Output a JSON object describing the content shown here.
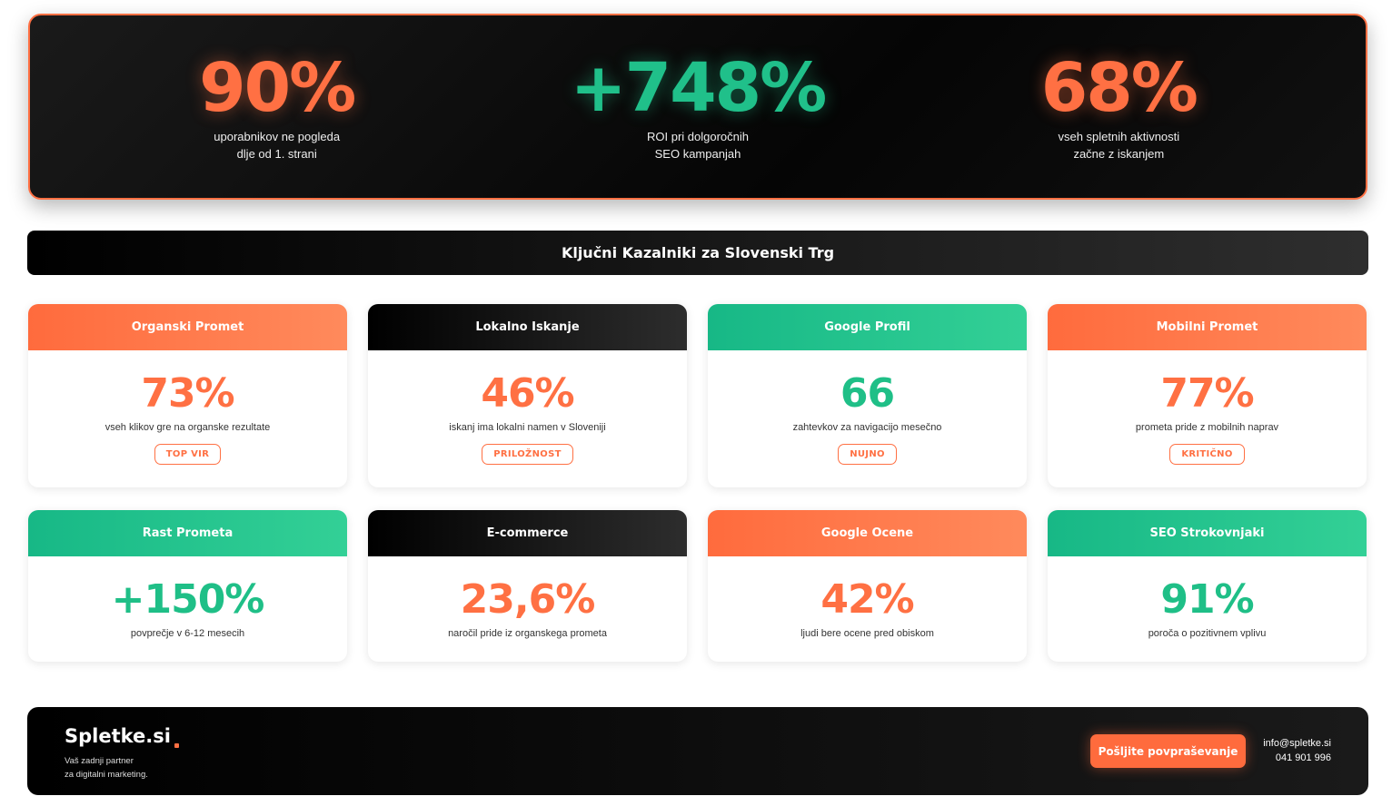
{
  "hero": {
    "stats": [
      {
        "value": "90%",
        "label": "uporabnikov ne pogleda\ndlje od 1. strani",
        "color": "#ff7043"
      },
      {
        "value": "+748%",
        "label": "ROI pri dolgoročnih\nSEO kampanjah",
        "color": "#20c08a"
      },
      {
        "value": "68%",
        "label": "vseh spletnih aktivnosti\nzačne z iskanjem",
        "color": "#ff7043"
      }
    ]
  },
  "section": {
    "title": "Ključni Kazalniki za Slovenski Trg"
  },
  "cards": [
    {
      "title": "Organski Promet",
      "value": "73%",
      "desc": "vseh klikov gre na organske rezultate",
      "badge": "TOP VIR"
    },
    {
      "title": "Lokalno Iskanje",
      "value": "46%",
      "desc": "iskanj ima lokalni namen v Sloveniji",
      "badge": "PRILOŽNOST"
    },
    {
      "title": "Google Profil",
      "value": "66",
      "desc": "zahtevkov za navigacijo mesečno",
      "badge": "NUJNO"
    },
    {
      "title": "Mobilni Promet",
      "value": "77%",
      "desc": "prometa pride z mobilnih naprav",
      "badge": "KRITIČNO"
    },
    {
      "title": "Rast Prometa",
      "value": "+150%",
      "desc": "povprečje v 6-12 mesecih"
    },
    {
      "title": "E-commerce",
      "value": "23,6%",
      "desc": "naročil pride iz organskega prometa"
    },
    {
      "title": "Google Ocene",
      "value": "42%",
      "desc": "ljudi bere ocene pred obiskom"
    },
    {
      "title": "SEO Strokovnjaki",
      "value": "91%",
      "desc": "poroča o pozitivnem vplivu"
    }
  ],
  "footer": {
    "logo": "Spletke.si",
    "tagline": "Vaš zadnji partner\nza digitalni marketing.",
    "cta_label": "Pošljite povpraševanje",
    "email": "info@spletke.si",
    "phone": "041 901 996"
  },
  "colors": {
    "accent_orange": "#ff7043",
    "accent_green": "#20c08a",
    "dark": "#000000"
  }
}
